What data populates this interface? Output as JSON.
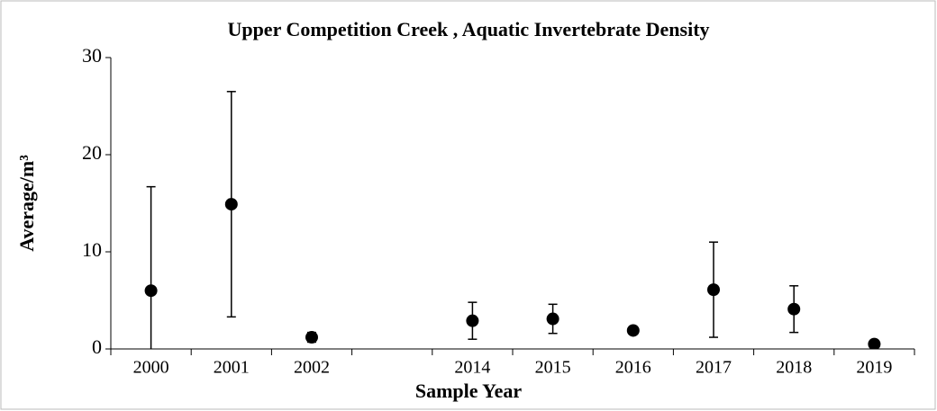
{
  "chart_data": {
    "type": "scatter",
    "title": "Upper Competition Creek , Aquatic Invertebrate Density",
    "x_label": "Sample Year",
    "y_label": "Average/m³",
    "categories": [
      "2000",
      "2001",
      "2002",
      null,
      "2014",
      "2015",
      "2016",
      "2017",
      "2018",
      "2019"
    ],
    "series": [
      {
        "color": "#000000",
        "values": [
          6.0,
          14.9,
          1.2,
          null,
          2.9,
          3.1,
          1.9,
          6.1,
          4.1,
          0.5
        ],
        "errors": [
          10.7,
          11.6,
          0.5,
          null,
          1.9,
          1.5,
          0.3,
          4.9,
          2.4,
          0.0
        ]
      }
    ],
    "ylim": [
      0,
      30
    ],
    "yticks": [
      0,
      10,
      20,
      30
    ],
    "grid": false
  }
}
